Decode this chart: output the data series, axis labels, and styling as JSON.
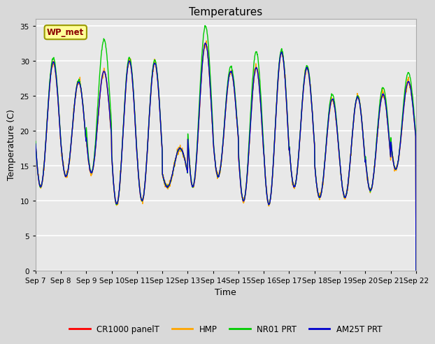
{
  "title": "Temperatures",
  "xlabel": "Time",
  "ylabel": "Temperature (C)",
  "ylim": [
    0,
    36
  ],
  "yticks": [
    0,
    5,
    10,
    15,
    20,
    25,
    30,
    35
  ],
  "annotation": "WP_met",
  "x_tick_labels": [
    "Sep 7",
    "Sep 8",
    "Sep 9",
    "Sep 10",
    "Sep 11",
    "Sep 12",
    "Sep 13",
    "Sep 14",
    "Sep 15",
    "Sep 16",
    "Sep 17",
    "Sep 18",
    "Sep 19",
    "Sep 20",
    "Sep 21",
    "Sep 22"
  ],
  "legend_labels": [
    "CR1000 panelT",
    "HMP",
    "NR01 PRT",
    "AM25T PRT"
  ],
  "legend_colors": [
    "#ff0000",
    "#ffa500",
    "#00cc00",
    "#0000cc"
  ],
  "fig_bg_color": "#d9d9d9",
  "plot_bg_color": "#e8e8e8",
  "grid_color": "#ffffff",
  "figsize": [
    6.4,
    4.8
  ],
  "dpi": 100,
  "n_days": 15,
  "pts_per_day": 96,
  "peaks": [
    29.8,
    27.0,
    28.5,
    30.0,
    29.7,
    17.5,
    32.5,
    28.5,
    29.0,
    31.2,
    29.0,
    24.5,
    24.8,
    25.2,
    27.0
  ],
  "troughs": [
    12.0,
    13.5,
    14.0,
    9.5,
    10.0,
    12.0,
    12.0,
    13.5,
    10.0,
    9.5,
    12.0,
    10.5,
    10.5,
    11.5,
    14.5
  ],
  "green_peaks": [
    30.4,
    27.2,
    33.0,
    30.5,
    30.1,
    17.5,
    35.0,
    29.2,
    31.3,
    31.6,
    29.3,
    25.2,
    25.0,
    26.2,
    28.3
  ]
}
